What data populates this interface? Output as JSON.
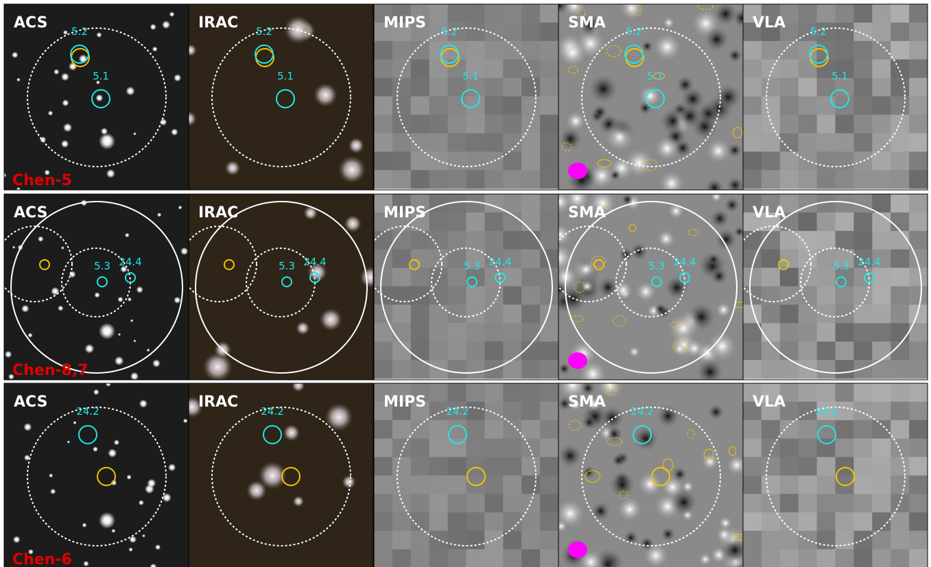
{
  "rows": [
    {
      "label": "Chen-5",
      "panels": [
        "ACS",
        "IRAC",
        "MIPS",
        "SMA",
        "VLA"
      ],
      "sources": [
        "5.2",
        "5.1"
      ]
    },
    {
      "label": "Chen-8,7",
      "panels": [
        "ACS",
        "IRAC",
        "MIPS",
        "SMA",
        "VLA"
      ],
      "sources": [
        "5.3",
        "24.4"
      ]
    },
    {
      "label": "Chen-6",
      "panels": [
        "ACS",
        "IRAC",
        "MIPS",
        "SMA",
        "VLA"
      ],
      "sources": [
        "24.2"
      ]
    }
  ]
}
